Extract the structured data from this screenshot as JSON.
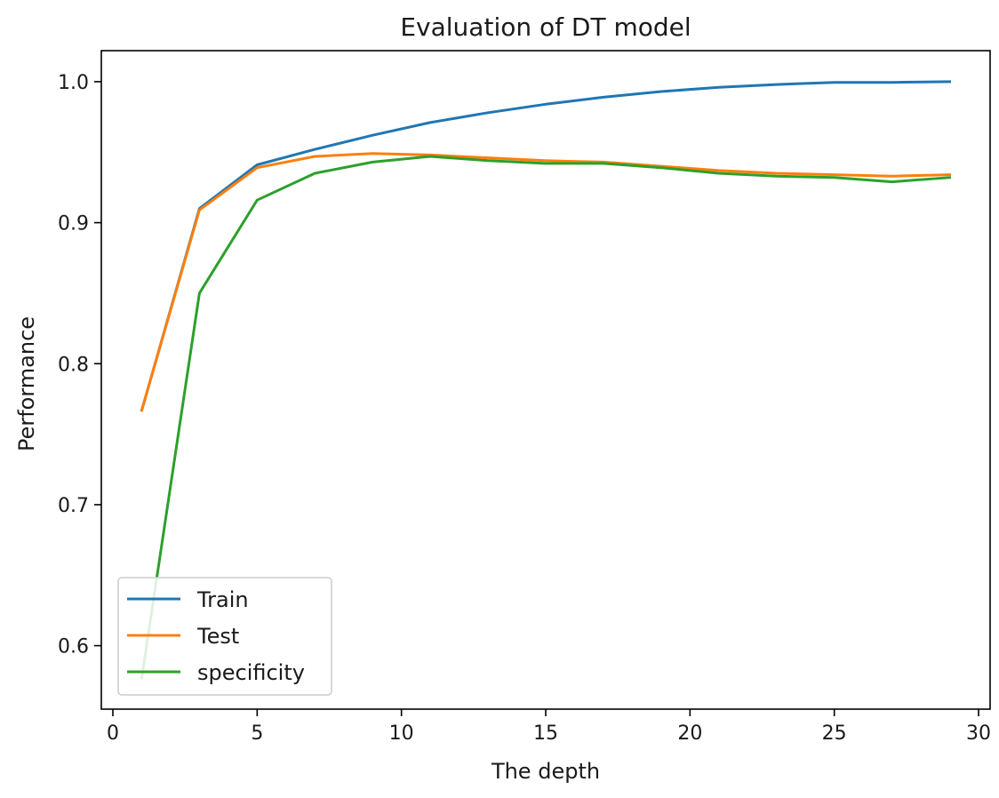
{
  "chart_data": {
    "type": "line",
    "title": "Evaluation of DT model",
    "xlabel": "The depth",
    "ylabel": "Performance",
    "xlim": [
      -0.4,
      30.4
    ],
    "ylim": [
      0.555,
      1.022
    ],
    "xticks": [
      0,
      5,
      10,
      15,
      20,
      25,
      30
    ],
    "yticks": [
      0.6,
      0.7,
      0.8,
      0.9,
      1.0
    ],
    "xtick_labels": [
      "0",
      "5",
      "10",
      "15",
      "20",
      "25",
      "30"
    ],
    "ytick_labels": [
      "0.6",
      "0.7",
      "0.8",
      "0.9",
      "1.0"
    ],
    "grid": false,
    "legend_position": "lower-left",
    "x": [
      1,
      3,
      5,
      7,
      9,
      11,
      13,
      15,
      17,
      19,
      21,
      23,
      25,
      27,
      29
    ],
    "series": [
      {
        "name": "Train",
        "color": "#1f77b4",
        "values": [
          0.767,
          0.91,
          0.941,
          0.952,
          0.962,
          0.971,
          0.978,
          0.984,
          0.989,
          0.993,
          0.996,
          0.998,
          0.9995,
          0.9995,
          1.0
        ]
      },
      {
        "name": "Test",
        "color": "#ff7f0e",
        "values": [
          0.767,
          0.909,
          0.939,
          0.947,
          0.949,
          0.948,
          0.946,
          0.944,
          0.943,
          0.94,
          0.937,
          0.935,
          0.934,
          0.933,
          0.934
        ]
      },
      {
        "name": "specificity",
        "color": "#2ca02c",
        "values": [
          0.577,
          0.85,
          0.916,
          0.935,
          0.943,
          0.947,
          0.944,
          0.942,
          0.942,
          0.939,
          0.935,
          0.933,
          0.932,
          0.929,
          0.932
        ]
      }
    ]
  }
}
